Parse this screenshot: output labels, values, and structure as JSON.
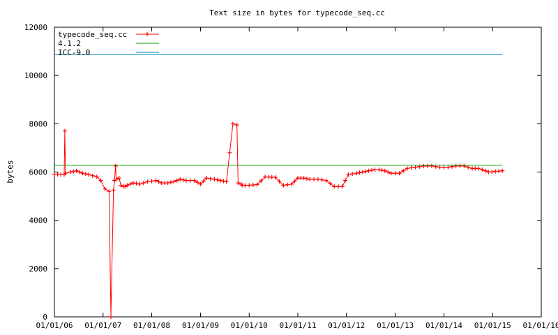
{
  "chart_data": {
    "type": "line",
    "title": "Text size in bytes for typecode_seq.cc",
    "xlabel": "",
    "ylabel": "bytes",
    "xlim": [
      "2006-01-01",
      "2016-01-01"
    ],
    "ylim": [
      0,
      12000
    ],
    "x_tick_labels": [
      "01/01/06",
      "01/01/07",
      "01/01/08",
      "01/01/09",
      "01/01/10",
      "01/01/11",
      "01/01/12",
      "01/01/13",
      "01/01/14",
      "01/01/15",
      "01/01/16"
    ],
    "y_tick_labels": [
      "0",
      "2000",
      "4000",
      "6000",
      "8000",
      "10000",
      "12000"
    ],
    "grid": false,
    "legend_position": "top-left",
    "series": [
      {
        "name": "typecode_seq.cc",
        "color": "#ff0000",
        "style": "line-with-plus-markers",
        "x": [
          "2006-01-01",
          "2006-03-15",
          "2006-03-20",
          "2006-03-25",
          "2006-05-01",
          "2006-06-15",
          "2006-08-01",
          "2006-09-15",
          "2006-10-15",
          "2006-11-15",
          "2006-12-15",
          "2007-01-15",
          "2007-02-15",
          "2007-03-01",
          "2007-03-20",
          "2007-03-28",
          "2007-04-05",
          "2007-04-10",
          "2007-05-01",
          "2007-05-15",
          "2007-06-01",
          "2007-06-15",
          "2007-07-01",
          "2007-08-15",
          "2007-10-01",
          "2007-12-01",
          "2008-02-01",
          "2008-03-15",
          "2008-05-01",
          "2008-06-15",
          "2008-08-01",
          "2008-09-15",
          "2008-11-15",
          "2009-01-01",
          "2009-02-15",
          "2009-04-15",
          "2009-06-01",
          "2009-07-15",
          "2009-09-01",
          "2009-10-01",
          "2009-10-10",
          "2009-11-01",
          "2009-11-10",
          "2009-12-01",
          "2010-01-01",
          "2010-03-01",
          "2010-05-01",
          "2010-07-15",
          "2010-09-15",
          "2010-11-15",
          "2011-01-01",
          "2011-02-15",
          "2011-04-01",
          "2011-06-01",
          "2011-08-01",
          "2011-10-01",
          "2011-12-01",
          "2012-01-15",
          "2012-03-15",
          "2012-05-01",
          "2012-06-15",
          "2012-08-01",
          "2012-09-01",
          "2012-10-15",
          "2012-12-01",
          "2013-02-01",
          "2013-04-01",
          "2013-06-01",
          "2013-08-01",
          "2013-10-01",
          "2013-12-01",
          "2014-02-01",
          "2014-04-01",
          "2014-06-01",
          "2014-08-01",
          "2014-09-15",
          "2014-10-15",
          "2014-12-01",
          "2015-03-15"
        ],
        "y": [
          5900,
          5900,
          7700,
          5950,
          6000,
          6050,
          5950,
          5900,
          5850,
          5800,
          5650,
          5300,
          5200,
          0,
          5250,
          5650,
          6250,
          5700,
          5750,
          5450,
          5400,
          5400,
          5450,
          5550,
          5500,
          5600,
          5650,
          5550,
          5550,
          5600,
          5700,
          5650,
          5650,
          5500,
          5750,
          5700,
          5650,
          5600,
          8000,
          7950,
          5550,
          5500,
          5450,
          5450,
          5450,
          5480,
          5800,
          5780,
          5450,
          5500,
          5750,
          5750,
          5700,
          5700,
          5650,
          5400,
          5400,
          5900,
          5950,
          6000,
          6050,
          6100,
          6100,
          6050,
          5950,
          5950,
          6150,
          6200,
          6250,
          6250,
          6200,
          6200,
          6250,
          6250,
          6150,
          6150,
          6100,
          6000,
          6050
        ]
      },
      {
        "name": "4.1.2",
        "color": "#00a000",
        "style": "line",
        "x": [
          "2006-01-01",
          "2015-03-15"
        ],
        "y": [
          6280,
          6280
        ]
      },
      {
        "name": "ICC-9.0",
        "color": "#0080c0",
        "style": "line",
        "x": [
          "2006-01-01",
          "2015-03-15"
        ],
        "y": [
          10870,
          10870
        ]
      }
    ]
  }
}
